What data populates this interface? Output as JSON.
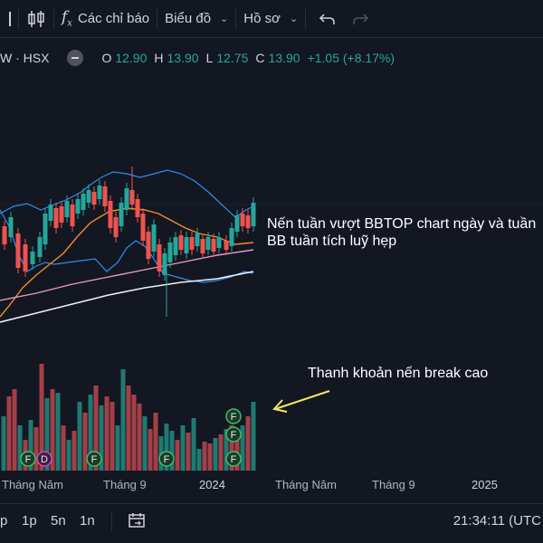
{
  "toolbar": {
    "indicators_label": "Các chỉ báo",
    "chart_menu_label": "Biểu đồ",
    "profile_menu_label": "Hồ sơ"
  },
  "legend": {
    "symbol": "W · HSX",
    "open_key": "O",
    "open": "12.90",
    "high_key": "H",
    "high": "13.90",
    "low_key": "L",
    "low": "12.75",
    "close_key": "C",
    "close": "13.90",
    "change": "+1.05 (+8.17%)"
  },
  "annotations": {
    "line1": "Nến tuần vượt BBTOP chart ngày và tuần",
    "line2": "BB tuần tích luỹ hẹp",
    "volume_note": "Thanh khoản nến break cao"
  },
  "markers": {
    "f": "F",
    "d": "D"
  },
  "time_axis": [
    "Tháng Năm",
    "Tháng 9",
    "2024",
    "Tháng Năm",
    "Tháng 9",
    "2025"
  ],
  "bottom": {
    "ranges": [
      "p",
      "1p",
      "5n",
      "1n"
    ],
    "clock": "21:34:11 (UTC"
  },
  "colors": {
    "background": "#131722",
    "up": "#26a69a",
    "down": "#ef5350",
    "bb_band": "#2f8cf0",
    "ma_orange": "#f28c28",
    "ma_pink": "#e89ac7",
    "ma_white": "#f0f0f0",
    "arrow": "#f5e663"
  }
}
